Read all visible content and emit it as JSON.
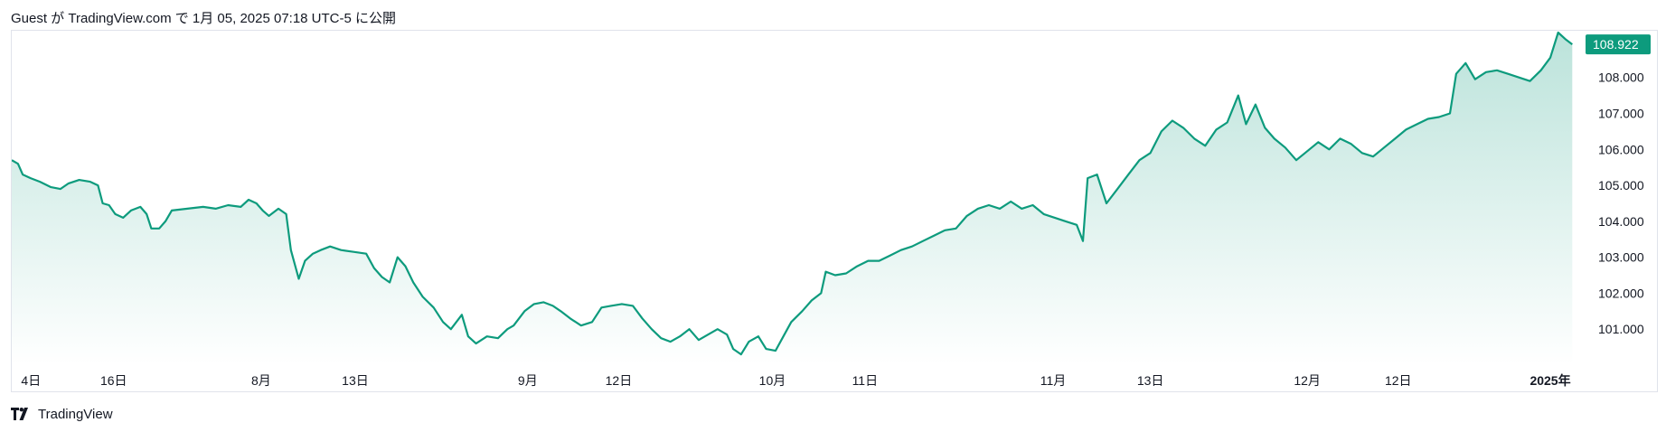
{
  "header": {
    "text": "Guest が TradingView.com で 1月 05, 2025 07:18 UTC-5 に公開"
  },
  "footer": {
    "brand": "TradingView",
    "logo_icon": "tradingview-logo-icon"
  },
  "colors": {
    "line": "#0d9b7d",
    "fill_top": "#0d9b7d",
    "label_bg": "#0d9b7d"
  },
  "chart_data": {
    "type": "area",
    "last_value_label": "108.922",
    "ylim": [
      100.0,
      109.3
    ],
    "y_ticks": [
      {
        "value": 108.0,
        "label": "108.000"
      },
      {
        "value": 107.0,
        "label": "107.000"
      },
      {
        "value": 106.0,
        "label": "106.000"
      },
      {
        "value": 105.0,
        "label": "105.000"
      },
      {
        "value": 104.0,
        "label": "104.000"
      },
      {
        "value": 103.0,
        "label": "103.000"
      },
      {
        "value": 102.0,
        "label": "102.000"
      },
      {
        "value": 101.0,
        "label": "101.000"
      }
    ],
    "x_range": [
      0,
      100
    ],
    "x_ticks": [
      {
        "pos": 0.6,
        "label": "4日",
        "bold": false
      },
      {
        "pos": 6.5,
        "label": "16日",
        "bold": false
      },
      {
        "pos": 15.9,
        "label": "8月",
        "bold": false
      },
      {
        "pos": 21.9,
        "label": "13日",
        "bold": false
      },
      {
        "pos": 32.9,
        "label": "9月",
        "bold": false
      },
      {
        "pos": 38.7,
        "label": "12日",
        "bold": false
      },
      {
        "pos": 48.5,
        "label": "10月",
        "bold": false
      },
      {
        "pos": 54.4,
        "label": "11日",
        "bold": false
      },
      {
        "pos": 66.4,
        "label": "11月",
        "bold": false
      },
      {
        "pos": 72.6,
        "label": "13日",
        "bold": false
      },
      {
        "pos": 82.6,
        "label": "12月",
        "bold": false
      },
      {
        "pos": 88.4,
        "label": "12日",
        "bold": false
      },
      {
        "pos": 98.1,
        "label": "2025年",
        "bold": true
      }
    ],
    "series": [
      {
        "points": [
          [
            0,
            105.7
          ],
          [
            0.4,
            105.6
          ],
          [
            0.7,
            105.3
          ],
          [
            1.2,
            105.2
          ],
          [
            1.8,
            105.1
          ],
          [
            2.5,
            104.95
          ],
          [
            3.1,
            104.9
          ],
          [
            3.6,
            105.05
          ],
          [
            4.3,
            105.15
          ],
          [
            5.0,
            105.1
          ],
          [
            5.5,
            105.0
          ],
          [
            5.8,
            104.5
          ],
          [
            6.2,
            104.45
          ],
          [
            6.6,
            104.2
          ],
          [
            7.1,
            104.1
          ],
          [
            7.6,
            104.3
          ],
          [
            8.2,
            104.4
          ],
          [
            8.6,
            104.2
          ],
          [
            8.9,
            103.8
          ],
          [
            9.4,
            103.8
          ],
          [
            9.8,
            104.0
          ],
          [
            10.2,
            104.3
          ],
          [
            11.2,
            104.35
          ],
          [
            12.2,
            104.4
          ],
          [
            13.0,
            104.35
          ],
          [
            13.8,
            104.45
          ],
          [
            14.6,
            104.4
          ],
          [
            15.1,
            104.6
          ],
          [
            15.6,
            104.5
          ],
          [
            16.0,
            104.3
          ],
          [
            16.4,
            104.15
          ],
          [
            17.0,
            104.35
          ],
          [
            17.5,
            104.2
          ],
          [
            17.8,
            103.2
          ],
          [
            18.3,
            102.4
          ],
          [
            18.7,
            102.9
          ],
          [
            19.2,
            103.1
          ],
          [
            19.7,
            103.2
          ],
          [
            20.3,
            103.3
          ],
          [
            21.0,
            103.2
          ],
          [
            21.8,
            103.15
          ],
          [
            22.6,
            103.1
          ],
          [
            23.1,
            102.7
          ],
          [
            23.6,
            102.45
          ],
          [
            24.1,
            102.3
          ],
          [
            24.6,
            103.0
          ],
          [
            25.1,
            102.75
          ],
          [
            25.6,
            102.3
          ],
          [
            26.2,
            101.9
          ],
          [
            26.9,
            101.6
          ],
          [
            27.5,
            101.2
          ],
          [
            28.0,
            101.0
          ],
          [
            28.7,
            101.4
          ],
          [
            29.1,
            100.8
          ],
          [
            29.6,
            100.6
          ],
          [
            30.3,
            100.8
          ],
          [
            31.0,
            100.75
          ],
          [
            31.6,
            101.0
          ],
          [
            32.0,
            101.1
          ],
          [
            32.7,
            101.5
          ],
          [
            33.3,
            101.7
          ],
          [
            33.9,
            101.75
          ],
          [
            34.5,
            101.65
          ],
          [
            35.0,
            101.5
          ],
          [
            35.6,
            101.3
          ],
          [
            36.3,
            101.1
          ],
          [
            37.0,
            101.2
          ],
          [
            37.6,
            101.6
          ],
          [
            38.2,
            101.65
          ],
          [
            38.9,
            101.7
          ],
          [
            39.6,
            101.65
          ],
          [
            40.2,
            101.3
          ],
          [
            40.8,
            101.0
          ],
          [
            41.4,
            100.75
          ],
          [
            42.0,
            100.65
          ],
          [
            42.6,
            100.8
          ],
          [
            43.2,
            101.0
          ],
          [
            43.8,
            100.7
          ],
          [
            44.4,
            100.85
          ],
          [
            45.0,
            101.0
          ],
          [
            45.6,
            100.85
          ],
          [
            46.0,
            100.45
          ],
          [
            46.5,
            100.3
          ],
          [
            47.0,
            100.65
          ],
          [
            47.6,
            100.8
          ],
          [
            48.1,
            100.45
          ],
          [
            48.7,
            100.4
          ],
          [
            49.2,
            100.8
          ],
          [
            49.7,
            101.2
          ],
          [
            50.4,
            101.5
          ],
          [
            51.0,
            101.8
          ],
          [
            51.6,
            102.0
          ],
          [
            51.9,
            102.6
          ],
          [
            52.5,
            102.5
          ],
          [
            53.2,
            102.55
          ],
          [
            53.9,
            102.75
          ],
          [
            54.6,
            102.9
          ],
          [
            55.3,
            102.9
          ],
          [
            56.0,
            103.05
          ],
          [
            56.7,
            103.2
          ],
          [
            57.4,
            103.3
          ],
          [
            58.1,
            103.45
          ],
          [
            58.8,
            103.6
          ],
          [
            59.5,
            103.75
          ],
          [
            60.2,
            103.8
          ],
          [
            60.9,
            104.15
          ],
          [
            61.6,
            104.35
          ],
          [
            62.3,
            104.45
          ],
          [
            63.0,
            104.35
          ],
          [
            63.7,
            104.55
          ],
          [
            64.4,
            104.35
          ],
          [
            65.1,
            104.45
          ],
          [
            65.8,
            104.2
          ],
          [
            66.5,
            104.1
          ],
          [
            67.2,
            104.0
          ],
          [
            67.9,
            103.9
          ],
          [
            68.3,
            103.45
          ],
          [
            68.6,
            105.2
          ],
          [
            69.2,
            105.3
          ],
          [
            69.8,
            104.5
          ],
          [
            70.5,
            104.9
          ],
          [
            71.2,
            105.3
          ],
          [
            71.9,
            105.7
          ],
          [
            72.6,
            105.9
          ],
          [
            73.3,
            106.5
          ],
          [
            74.0,
            106.8
          ],
          [
            74.7,
            106.6
          ],
          [
            75.4,
            106.3
          ],
          [
            76.1,
            106.1
          ],
          [
            76.8,
            106.55
          ],
          [
            77.5,
            106.75
          ],
          [
            78.2,
            107.5
          ],
          [
            78.7,
            106.7
          ],
          [
            79.3,
            107.25
          ],
          [
            79.9,
            106.6
          ],
          [
            80.5,
            106.3
          ],
          [
            81.2,
            106.05
          ],
          [
            81.9,
            105.7
          ],
          [
            82.6,
            105.95
          ],
          [
            83.3,
            106.2
          ],
          [
            84.0,
            106.0
          ],
          [
            84.7,
            106.3
          ],
          [
            85.4,
            106.15
          ],
          [
            86.1,
            105.9
          ],
          [
            86.8,
            105.8
          ],
          [
            87.5,
            106.05
          ],
          [
            88.2,
            106.3
          ],
          [
            88.9,
            106.55
          ],
          [
            89.6,
            106.7
          ],
          [
            90.3,
            106.85
          ],
          [
            91.0,
            106.9
          ],
          [
            91.7,
            107.0
          ],
          [
            92.1,
            108.1
          ],
          [
            92.7,
            108.4
          ],
          [
            93.3,
            107.95
          ],
          [
            94.0,
            108.15
          ],
          [
            94.7,
            108.2
          ],
          [
            95.4,
            108.1
          ],
          [
            96.1,
            108.0
          ],
          [
            96.8,
            107.9
          ],
          [
            97.5,
            108.2
          ],
          [
            98.1,
            108.55
          ],
          [
            98.6,
            109.25
          ],
          [
            99.1,
            109.05
          ],
          [
            99.5,
            108.92
          ]
        ]
      }
    ]
  }
}
